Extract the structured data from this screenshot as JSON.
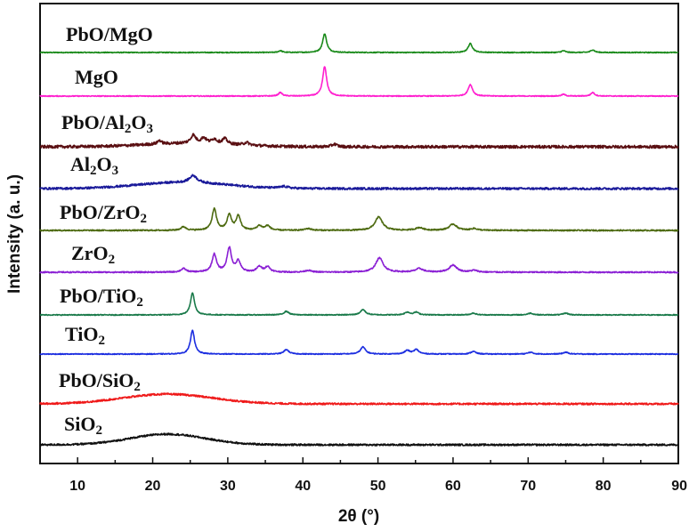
{
  "chart_data": {
    "type": "line",
    "title": "",
    "xlabel": "2θ (°)",
    "ylabel": "Intensity (a. u.)",
    "xlim": [
      5,
      90
    ],
    "xticks": [
      10,
      20,
      30,
      40,
      50,
      60,
      70,
      80,
      90
    ],
    "ytick_labels": false,
    "legend": "inline labels, left of each trace",
    "series": [
      {
        "name": "PbO/MgO",
        "label_main": "PbO/MgO",
        "color": "#1a8a1a",
        "baseline": 59,
        "noise": 0.5,
        "hump": null,
        "peaks": [
          [
            37.0,
            2,
            0.3
          ],
          [
            42.9,
            21,
            0.32
          ],
          [
            62.3,
            10,
            0.35
          ],
          [
            74.7,
            2,
            0.3
          ],
          [
            78.6,
            3,
            0.3
          ]
        ]
      },
      {
        "name": "MgO",
        "label_main": "MgO",
        "color": "#ff1fcf",
        "baseline": 108,
        "noise": 0.5,
        "hump": null,
        "peaks": [
          [
            37.0,
            4,
            0.3
          ],
          [
            42.9,
            33,
            0.32
          ],
          [
            62.3,
            13,
            0.35
          ],
          [
            74.7,
            2,
            0.3
          ],
          [
            78.6,
            4,
            0.3
          ]
        ]
      },
      {
        "name": "PbO/Al2O3",
        "label_main": "PbO/Al",
        "label_sub1": "2",
        "label_mid": "O",
        "label_sub2": "3",
        "color": "#5a0f12",
        "baseline": 165,
        "noise": 1.6,
        "hump": [
          25,
          4,
          6
        ],
        "peaks": [
          [
            20.9,
            4,
            0.3
          ],
          [
            25.4,
            9,
            0.4
          ],
          [
            26.8,
            6,
            0.4
          ],
          [
            28.2,
            5,
            0.4
          ],
          [
            29.6,
            6,
            0.4
          ],
          [
            32.5,
            3,
            0.4
          ],
          [
            44.2,
            3,
            0.4
          ]
        ]
      },
      {
        "name": "Al2O3",
        "label_main": "Al",
        "label_sub1": "2",
        "label_mid": "O",
        "label_sub2": "3",
        "color": "#1a1a9a",
        "baseline": 212,
        "noise": 1.2,
        "hump": [
          24,
          7,
          6
        ],
        "peaks": [
          [
            25.4,
            8,
            0.6
          ],
          [
            37.5,
            2,
            0.6
          ]
        ]
      },
      {
        "name": "PbO/ZrO2",
        "label_main": "PbO/ZrO",
        "label_sub1": "2",
        "color": "#4d6a10",
        "baseline": 259,
        "noise": 0.7,
        "hump": null,
        "peaks": [
          [
            24.1,
            4,
            0.4
          ],
          [
            28.2,
            24,
            0.35
          ],
          [
            30.2,
            17,
            0.35
          ],
          [
            31.4,
            16,
            0.35
          ],
          [
            34.2,
            5,
            0.4
          ],
          [
            35.3,
            5,
            0.4
          ],
          [
            40.7,
            2,
            0.5
          ],
          [
            50.1,
            15,
            0.6
          ],
          [
            55.5,
            3,
            0.6
          ],
          [
            60.0,
            7,
            0.6
          ],
          [
            62.8,
            2,
            0.5
          ]
        ]
      },
      {
        "name": "ZrO2",
        "label_main": "ZrO",
        "label_sub1": "2",
        "color": "#8a1fd4",
        "baseline": 306,
        "noise": 0.7,
        "hump": null,
        "peaks": [
          [
            24.1,
            4,
            0.4
          ],
          [
            28.2,
            20,
            0.35
          ],
          [
            30.2,
            27,
            0.35
          ],
          [
            31.4,
            12,
            0.35
          ],
          [
            34.2,
            6,
            0.4
          ],
          [
            35.3,
            6,
            0.4
          ],
          [
            40.7,
            2,
            0.5
          ],
          [
            50.2,
            16,
            0.6
          ],
          [
            55.5,
            4,
            0.6
          ],
          [
            60.0,
            8,
            0.6
          ],
          [
            62.8,
            2,
            0.5
          ]
        ]
      },
      {
        "name": "PbO/TiO2",
        "label_main": "PbO/TiO",
        "label_sub1": "2",
        "color": "#1a7a4a",
        "baseline": 354,
        "noise": 0.5,
        "hump": null,
        "peaks": [
          [
            25.3,
            25,
            0.32
          ],
          [
            37.8,
            4,
            0.4
          ],
          [
            48.0,
            6,
            0.4
          ],
          [
            53.9,
            3,
            0.4
          ],
          [
            55.1,
            3,
            0.4
          ],
          [
            62.7,
            2,
            0.4
          ],
          [
            70.3,
            2,
            0.4
          ],
          [
            75.0,
            2,
            0.4
          ]
        ]
      },
      {
        "name": "TiO2",
        "label_main": "TiO",
        "label_sub1": "2",
        "color": "#1c2ee0",
        "baseline": 398,
        "noise": 0.5,
        "hump": null,
        "peaks": [
          [
            25.3,
            27,
            0.32
          ],
          [
            37.8,
            5,
            0.4
          ],
          [
            48.0,
            8,
            0.4
          ],
          [
            53.9,
            4,
            0.4
          ],
          [
            55.1,
            5,
            0.4
          ],
          [
            62.7,
            3,
            0.4
          ],
          [
            70.3,
            2,
            0.4
          ],
          [
            75.0,
            2,
            0.4
          ]
        ]
      },
      {
        "name": "PbO/SiO2",
        "label_main": "PbO/SiO",
        "label_sub1": "2",
        "color": "#ef1a1a",
        "baseline": 454,
        "noise": 1.0,
        "hump": [
          22,
          11,
          6
        ],
        "peaks": []
      },
      {
        "name": "SiO2",
        "label_main": "SiO",
        "label_sub1": "2",
        "color": "#111111",
        "baseline": 500,
        "noise": 1.0,
        "hump": [
          22,
          12,
          5
        ],
        "peaks": []
      }
    ]
  }
}
